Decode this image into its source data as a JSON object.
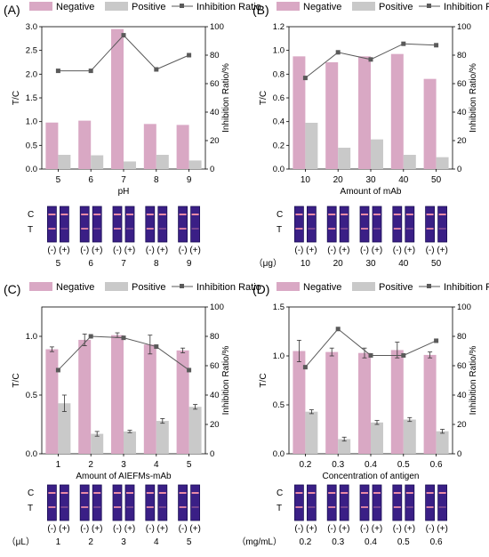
{
  "colors": {
    "negative": "#d9a8c4",
    "positive": "#c9c9c9",
    "ratio": "#5a5a5a",
    "strip_bg": "#3a1f86",
    "strip_frame": "#1b0f55",
    "strip_band": "#e98aa6"
  },
  "legend": {
    "negative": "Negative",
    "positive": "Positive",
    "ratio": "Inhibition Ratio"
  },
  "strip_labels": {
    "C": "C",
    "T": "T",
    "minus": "(-)",
    "plus": "(+)"
  },
  "chart_data": [
    {
      "panel": "(A)",
      "type": "bar",
      "categories": [
        "5",
        "6",
        "7",
        "8",
        "9"
      ],
      "xlabel": "pH",
      "ylabel": "T/C",
      "y2label": "Inhibition Ratio/%",
      "ylim": [
        0,
        3.0
      ],
      "yticks": [
        "0.0",
        "0.5",
        "1.0",
        "1.5",
        "2.0",
        "2.5",
        "3.0"
      ],
      "y2lim": [
        0,
        100
      ],
      "y2ticks": [
        "0",
        "20",
        "40",
        "60",
        "80",
        "100"
      ],
      "series": [
        {
          "name": "Negative",
          "values": [
            0.98,
            1.02,
            2.95,
            0.95,
            0.93
          ],
          "errors": null
        },
        {
          "name": "Positive",
          "values": [
            0.3,
            0.29,
            0.16,
            0.3,
            0.18
          ],
          "errors": null
        },
        {
          "name": "Inhibition Ratio",
          "values": [
            69,
            69,
            94,
            70,
            80
          ]
        }
      ],
      "strip_unit": "",
      "strip_numbers": [
        "5",
        "6",
        "7",
        "8",
        "9"
      ]
    },
    {
      "panel": "(B)",
      "type": "bar",
      "categories": [
        "10",
        "20",
        "30",
        "40",
        "50"
      ],
      "xlabel": "Amount of mAb",
      "ylabel": "T/C",
      "y2label": "Inhibition Ratio/%",
      "ylim": [
        0,
        1.2
      ],
      "yticks": [
        "0.0",
        "0.2",
        "0.4",
        "0.6",
        "0.8",
        "1.0",
        "1.2"
      ],
      "y2lim": [
        0,
        100
      ],
      "y2ticks": [
        "0",
        "20",
        "40",
        "60",
        "80",
        "100"
      ],
      "series": [
        {
          "name": "Negative",
          "values": [
            0.95,
            0.9,
            0.95,
            0.97,
            0.76
          ],
          "errors": null
        },
        {
          "name": "Positive",
          "values": [
            0.39,
            0.18,
            0.25,
            0.12,
            0.1
          ],
          "errors": null
        },
        {
          "name": "Inhibition Ratio",
          "values": [
            64,
            82,
            77,
            88,
            87
          ]
        }
      ],
      "strip_unit": "（μg）",
      "strip_numbers": [
        "10",
        "20",
        "30",
        "40",
        "50"
      ]
    },
    {
      "panel": "(C)",
      "type": "bar",
      "categories": [
        "1",
        "2",
        "3",
        "4",
        "5"
      ],
      "xlabel": "Amount of AIEFMs-mAb",
      "ylabel": "T/C",
      "y2label": "Inhibition Ratio/%",
      "ylim": [
        0,
        1.25
      ],
      "yticks": [
        "0.0",
        "0.5",
        "1.0"
      ],
      "y2lim": [
        0,
        100
      ],
      "y2ticks": [
        "0",
        "20",
        "40",
        "60",
        "80",
        "100"
      ],
      "series": [
        {
          "name": "Negative",
          "values": [
            0.89,
            0.97,
            1.01,
            0.93,
            0.88
          ],
          "errors": [
            0.02,
            0.05,
            0.02,
            0.08,
            0.02
          ]
        },
        {
          "name": "Positive",
          "values": [
            0.43,
            0.17,
            0.19,
            0.28,
            0.4
          ],
          "errors": [
            0.07,
            0.02,
            0.01,
            0.02,
            0.02
          ]
        },
        {
          "name": "Inhibition Ratio",
          "values": [
            57,
            80,
            79,
            73,
            57
          ]
        }
      ],
      "strip_unit": "（μL）",
      "strip_numbers": [
        "1",
        "2",
        "3",
        "4",
        "5"
      ]
    },
    {
      "panel": "(D)",
      "type": "bar",
      "categories": [
        "0.2",
        "0.3",
        "0.4",
        "0.5",
        "0.6"
      ],
      "xlabel": "Concentration of antigen",
      "ylabel": "T/C",
      "y2label": "Inhibition Ratio/%",
      "ylim": [
        0,
        1.5
      ],
      "yticks": [
        "0.0",
        "0.5",
        "1.0",
        "1.5"
      ],
      "y2lim": [
        0,
        100
      ],
      "y2ticks": [
        "0",
        "20",
        "40",
        "60",
        "80",
        "100"
      ],
      "series": [
        {
          "name": "Negative",
          "values": [
            1.05,
            1.04,
            1.03,
            1.06,
            1.01
          ],
          "errors": [
            0.11,
            0.04,
            0.05,
            0.08,
            0.03
          ]
        },
        {
          "name": "Positive",
          "values": [
            0.43,
            0.15,
            0.32,
            0.35,
            0.23
          ],
          "errors": [
            0.02,
            0.02,
            0.02,
            0.02,
            0.02
          ]
        },
        {
          "name": "Inhibition Ratio",
          "values": [
            59,
            85,
            67,
            67,
            77
          ]
        }
      ],
      "strip_unit": "（mg/mL）",
      "strip_numbers": [
        "0.2",
        "0.3",
        "0.4",
        "0.5",
        "0.6"
      ]
    }
  ]
}
